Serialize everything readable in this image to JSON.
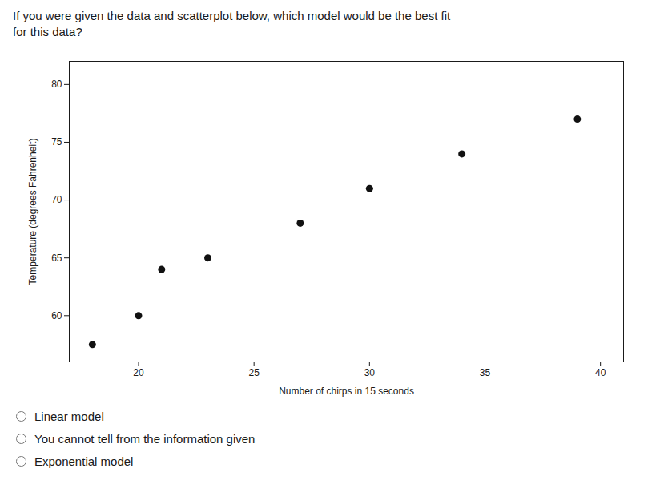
{
  "chart_data": {
    "type": "scatter",
    "title": "If you were given the data and scatterplot below, which model would be the best fit",
    "subtitle": "for this data?",
    "x": [
      18,
      20,
      21,
      23,
      27,
      30,
      34,
      39
    ],
    "values": [
      57.5,
      60,
      64,
      65,
      68,
      71,
      74,
      77
    ],
    "xlim": [
      17,
      41
    ],
    "ylim": [
      56,
      82
    ],
    "xticks": [
      20,
      25,
      30,
      35,
      40
    ],
    "yticks": [
      60,
      65,
      70,
      75,
      80
    ],
    "xlabel": "Number of chirps in 15 seconds",
    "ylabel": "Temperature (degrees Fahrenheit)",
    "color": "#111111",
    "grid": false,
    "annotations": [
      "Linear model",
      "You cannot tell from the information given",
      "Exponential model"
    ]
  }
}
